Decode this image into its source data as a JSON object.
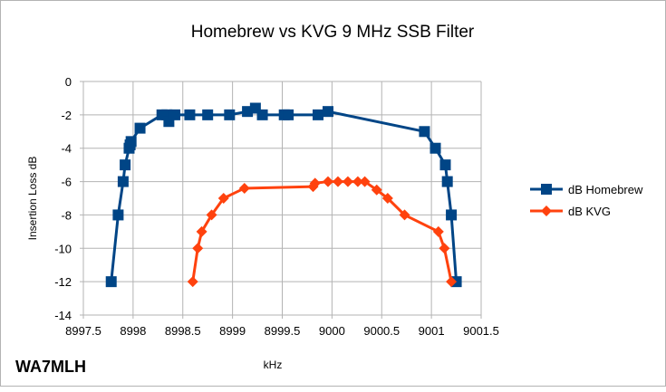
{
  "chart_data": {
    "type": "line",
    "title": "Homebrew vs KVG 9 MHz SSB Filter",
    "xlabel": "kHz",
    "ylabel": "Insertion Loss dB",
    "xlim": [
      8997.5,
      9001.5
    ],
    "ylim": [
      -14,
      0
    ],
    "xticks": [
      "8997.5",
      "8998",
      "8998.5",
      "8999",
      "8999.5",
      "9000",
      "9000.5",
      "9001",
      "9001.5"
    ],
    "yticks": [
      "0",
      "-2",
      "-4",
      "-6",
      "-8",
      "-10",
      "-12",
      "-14"
    ],
    "grid": true,
    "legend_position": "right",
    "series": [
      {
        "name": "dB Homebrew",
        "color": "#004586",
        "marker": "square",
        "x": [
          8997.78,
          8997.85,
          8997.9,
          8997.92,
          8997.96,
          8997.97,
          8997.98,
          8998.07,
          8998.29,
          8998.34,
          8998.36,
          8998.42,
          8998.57,
          8998.75,
          8998.97,
          8999.15,
          8999.23,
          8999.3,
          8999.52,
          8999.56,
          8999.86,
          8999.96,
          9000.93,
          9001.04,
          9001.14,
          9001.16,
          9001.2,
          9001.25
        ],
        "y": [
          -12,
          -8,
          -6,
          -5,
          -4,
          -3.8,
          -3.6,
          -2.8,
          -2,
          -2,
          -2.4,
          -2,
          -2,
          -2,
          -2,
          -1.8,
          -1.6,
          -2,
          -2,
          -2,
          -2,
          -1.8,
          -3,
          -4,
          -5,
          -6,
          -8,
          -12
        ]
      },
      {
        "name": "dB KVG",
        "color": "#ff420e",
        "marker": "diamond",
        "x": [
          8998.6,
          8998.65,
          8998.69,
          8998.79,
          8998.91,
          8999.12,
          8999.81,
          8999.83,
          8999.96,
          9000.06,
          9000.16,
          9000.26,
          9000.33,
          9000.45,
          9000.56,
          9000.73,
          9001.07,
          9001.13,
          9001.2
        ],
        "y": [
          -12,
          -10,
          -9,
          -8,
          -7,
          -6.4,
          -6.3,
          -6.1,
          -6,
          -6,
          -6,
          -6,
          -6,
          -6.5,
          -7,
          -8,
          -9,
          -10,
          -12
        ]
      }
    ],
    "annotations": [
      "WA7MLH"
    ]
  }
}
